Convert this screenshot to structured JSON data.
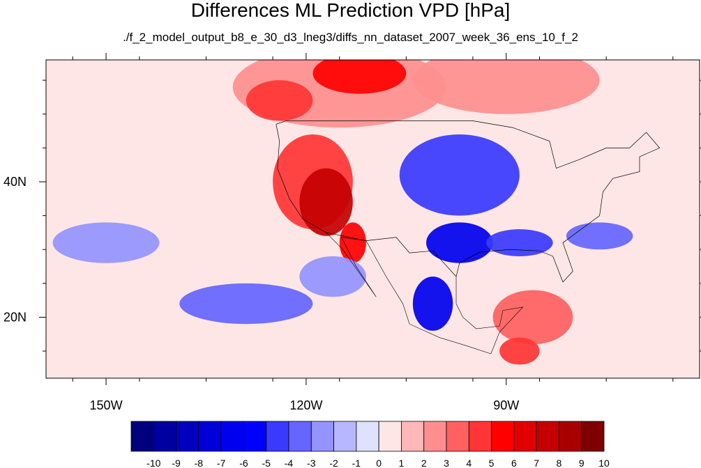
{
  "chart_data": {
    "type": "heatmap",
    "title": "Differences ML Prediction VPD [hPa]",
    "subtitle": "./f_2_model_output_b8_e_30_d3_lneg3/diffs_nn_dataset_2007_week_36_ens_10_f_2",
    "x_axis": {
      "ticks": [
        -150,
        -120,
        -90
      ],
      "tick_labels": [
        "150W",
        "120W",
        "90W"
      ],
      "range": [
        -159,
        -61
      ]
    },
    "y_axis": {
      "ticks": [
        20,
        40
      ],
      "tick_labels": [
        "20N",
        "40N"
      ],
      "range": [
        11,
        58
      ]
    },
    "colorbar": {
      "levels": [
        -10,
        -9,
        -8,
        -7,
        -6,
        -5,
        -4,
        -3,
        -2,
        -1,
        0,
        1,
        2,
        3,
        4,
        5,
        6,
        7,
        8,
        9,
        10
      ],
      "labels": [
        "-10",
        "-9",
        "-8",
        "-7",
        "-6",
        "-5",
        "-4",
        "-3",
        "-2",
        "-1",
        "0",
        "1",
        "2",
        "3",
        "4",
        "5",
        "6",
        "7",
        "8",
        "9",
        "10"
      ],
      "colors": [
        "#00007f",
        "#0000a0",
        "#0000be",
        "#0000d8",
        "#0000ee",
        "#0000ff",
        "#3a3aff",
        "#6565ff",
        "#9494ff",
        "#b7b7ff",
        "#e0e0ff",
        "#ffe6e6",
        "#ffb7b7",
        "#ff8f8f",
        "#ff6060",
        "#ff3535",
        "#ff0000",
        "#e00000",
        "#c40000",
        "#a80000",
        "#7f0000"
      ]
    },
    "anomaly_regions": [
      {
        "lon": -150,
        "lat": 40,
        "r_lon": 22,
        "r_lat": 13,
        "value": 1
      },
      {
        "lon": -68,
        "lat": 38,
        "r_lon": 12,
        "r_lat": 10,
        "value": 1
      },
      {
        "lon": -115,
        "lat": 54,
        "r_lon": 16,
        "r_lat": 6,
        "value": 3
      },
      {
        "lon": -90,
        "lat": 55,
        "r_lon": 14,
        "r_lat": 5,
        "value": 3
      },
      {
        "lon": -124,
        "lat": 52,
        "r_lon": 5,
        "r_lat": 3,
        "value": 5
      },
      {
        "lon": -112,
        "lat": 56,
        "r_lon": 7,
        "r_lat": 3,
        "value": 6
      },
      {
        "lon": -119,
        "lat": 40,
        "r_lon": 6,
        "r_lat": 7,
        "value": 5
      },
      {
        "lon": -117,
        "lat": 37,
        "r_lon": 4,
        "r_lat": 5,
        "value": 8
      },
      {
        "lon": -113,
        "lat": 31,
        "r_lon": 2,
        "r_lat": 3,
        "value": 6
      },
      {
        "lon": -86,
        "lat": 20,
        "r_lon": 6,
        "r_lat": 4,
        "value": 4
      },
      {
        "lon": -88,
        "lat": 15,
        "r_lon": 3,
        "r_lat": 2,
        "value": 5
      },
      {
        "lon": -97,
        "lat": 41,
        "r_lon": 9,
        "r_lat": 6,
        "value": -4
      },
      {
        "lon": -97,
        "lat": 31,
        "r_lon": 5,
        "r_lat": 3,
        "value": -6
      },
      {
        "lon": -88,
        "lat": 31,
        "r_lon": 5,
        "r_lat": 2,
        "value": -4
      },
      {
        "lon": -76,
        "lat": 32,
        "r_lon": 5,
        "r_lat": 2,
        "value": -3
      },
      {
        "lon": -101,
        "lat": 22,
        "r_lon": 3,
        "r_lat": 4,
        "value": -6
      },
      {
        "lon": -129,
        "lat": 22,
        "r_lon": 10,
        "r_lat": 3,
        "value": -3
      },
      {
        "lon": -150,
        "lat": 31,
        "r_lon": 8,
        "r_lat": 3,
        "value": -2
      },
      {
        "lon": -116,
        "lat": 26,
        "r_lon": 5,
        "r_lat": 3,
        "value": -2
      }
    ]
  }
}
